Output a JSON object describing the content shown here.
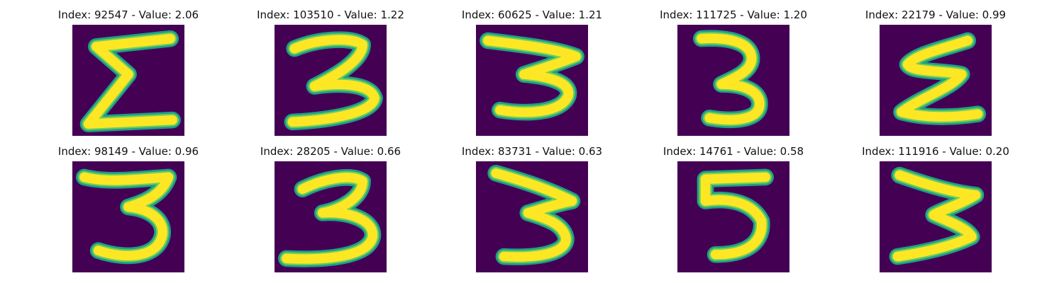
{
  "figure": {
    "background_color": "#440154",
    "stroke_outer_color": "#1f9e89",
    "stroke_mid_color": "#6ece58",
    "stroke_core_color": "#fde725"
  },
  "panels": [
    {
      "title": "Index: 92547 - Value: 2.06",
      "digit_shape": "sigma-like stroke"
    },
    {
      "title": "Index: 103510 - Value: 1.22",
      "digit_shape": "three"
    },
    {
      "title": "Index: 60625 - Value: 1.21",
      "digit_shape": "three"
    },
    {
      "title": "Index: 111725 - Value: 1.20",
      "digit_shape": "three"
    },
    {
      "title": "Index: 22179 - Value: 0.99",
      "digit_shape": "zigzag stroke"
    },
    {
      "title": "Index: 98149 - Value: 0.96",
      "digit_shape": "three"
    },
    {
      "title": "Index: 28205 - Value: 0.66",
      "digit_shape": "three"
    },
    {
      "title": "Index: 83731 - Value: 0.63",
      "digit_shape": "three"
    },
    {
      "title": "Index: 14761 - Value: 0.58",
      "digit_shape": "five"
    },
    {
      "title": "Index: 111916 - Value: 0.20",
      "digit_shape": "three"
    }
  ]
}
